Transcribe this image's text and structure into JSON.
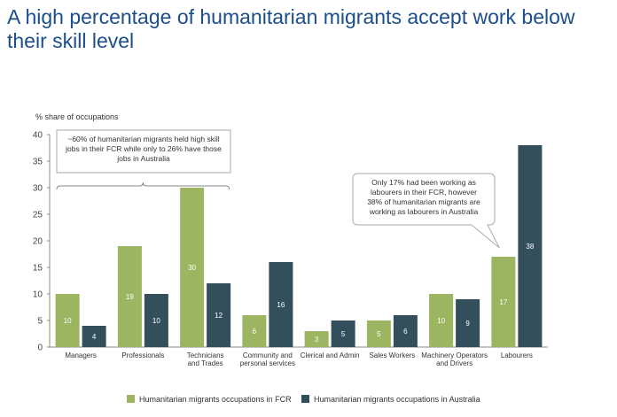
{
  "title": "A high percentage of humanitarian migrants accept work below their skill level",
  "chart_data": {
    "type": "bar",
    "ylabel": "% share of occupations",
    "ylim": [
      0,
      40
    ],
    "yticks": [
      0,
      5,
      10,
      15,
      20,
      25,
      30,
      35,
      40
    ],
    "categories": [
      [
        "Managers"
      ],
      [
        "Professionals"
      ],
      [
        "Technicians",
        "and Trades"
      ],
      [
        "Community and",
        "personal services"
      ],
      [
        "Clerical and Admin"
      ],
      [
        "Sales Workers"
      ],
      [
        "Machinery Operators",
        "and Drivers"
      ],
      [
        "Labourers"
      ]
    ],
    "series": [
      {
        "name": "Humanitarian migrants occupations in FCR",
        "color": "#9bb561",
        "values": [
          10,
          19,
          30,
          6,
          3,
          5,
          10,
          17
        ]
      },
      {
        "name": "Humanitarian migrants occupations in Australia",
        "color": "#344f5c",
        "values": [
          4,
          10,
          12,
          16,
          5,
          6,
          9,
          38
        ]
      }
    ],
    "legend_position": "bottom",
    "grid": false,
    "annotations": [
      {
        "lines": [
          "~60% of humanitarian migrants held high skill",
          "jobs in their FCR while only to 26% have those",
          "jobs in Australia"
        ],
        "spans_categories": [
          0,
          2
        ]
      },
      {
        "lines": [
          "Only 17% had been working as",
          "labourers in their FCR, however",
          "38% of humanitarian migrants are",
          "working as labourers in Australia"
        ],
        "points_to_category": 7
      }
    ]
  }
}
